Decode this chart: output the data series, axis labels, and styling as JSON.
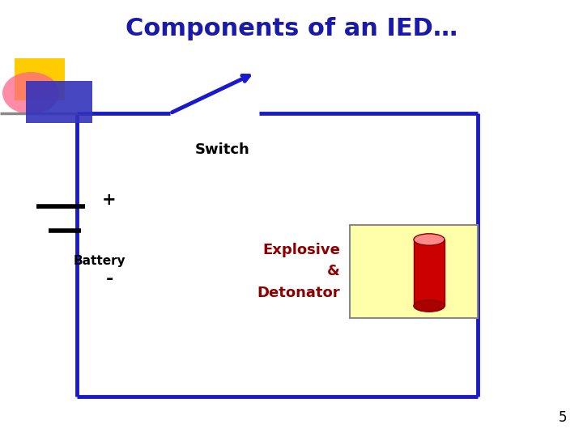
{
  "title": "Components of an IED…",
  "title_color": "#1a1aaa",
  "title_fontsize": 22,
  "title_fontstyle": "bold",
  "bg_color": "#ffffff",
  "circuit_color": "#1a1acc",
  "circuit_lw": 3.5,
  "switch_label": "Switch",
  "switch_label_color": "#000000",
  "switch_label_fontsize": 13,
  "switch_label_fontweight": "bold",
  "battery_label": "Battery",
  "battery_label_color": "#000000",
  "battery_label_fontsize": 11,
  "battery_label_fontweight": "bold",
  "plus_label": "+",
  "minus_label": "-",
  "explosive_label": "Explosive\n&\nDetonator",
  "explosive_label_color": "#8b0000",
  "explosive_label_fontsize": 13,
  "explosive_label_fontweight": "bold",
  "page_number": "5",
  "page_number_fontsize": 12,
  "yellow_box_color": "#ffffaa",
  "cylinder_color": "#cc0000"
}
